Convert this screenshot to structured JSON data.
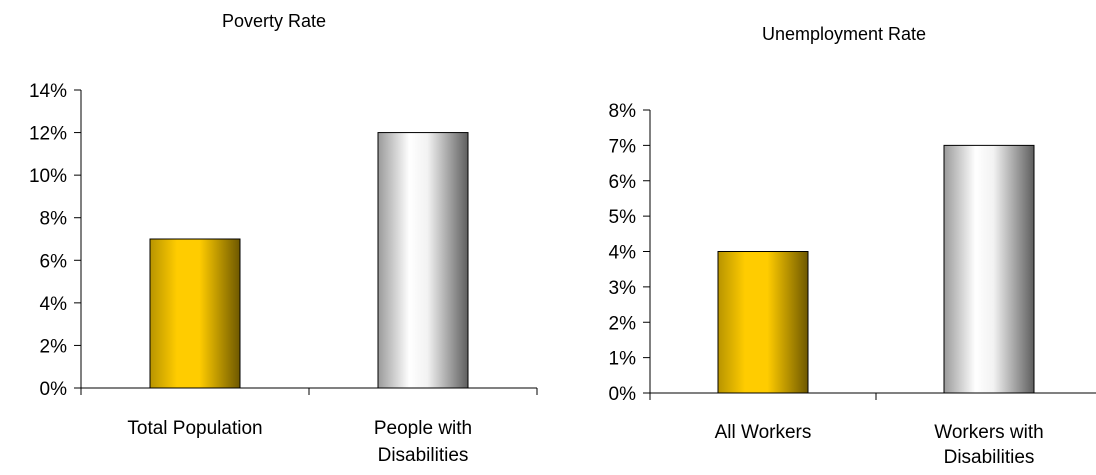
{
  "chart_data": [
    {
      "type": "bar",
      "title": "Poverty Rate",
      "xlabel": "",
      "ylabel": "",
      "categories": [
        "Total Population",
        "People with Disabilities"
      ],
      "values": [
        7,
        12
      ],
      "unit": "%",
      "ylim": [
        0,
        14
      ],
      "yticks": [
        0,
        2,
        4,
        6,
        8,
        10,
        12,
        14
      ],
      "ytick_labels": [
        "0%",
        "2%",
        "4%",
        "6%",
        "8%",
        "10%",
        "12%",
        "14%"
      ],
      "bar_colors": [
        "#ffcc00",
        "#e8e8e8"
      ],
      "grid": false,
      "legend": "none"
    },
    {
      "type": "bar",
      "title": "Unemployment Rate",
      "xlabel": "",
      "ylabel": "",
      "categories": [
        "All Workers",
        "Workers with Disabilities"
      ],
      "values": [
        4,
        7
      ],
      "unit": "%",
      "ylim": [
        0,
        8
      ],
      "yticks": [
        0,
        1,
        2,
        3,
        4,
        5,
        6,
        7,
        8
      ],
      "ytick_labels": [
        "0%",
        "1%",
        "2%",
        "3%",
        "4%",
        "5%",
        "6%",
        "7%",
        "8%"
      ],
      "bar_colors": [
        "#ffcc00",
        "#e8e8e8"
      ],
      "grid": false,
      "legend": "none"
    }
  ]
}
